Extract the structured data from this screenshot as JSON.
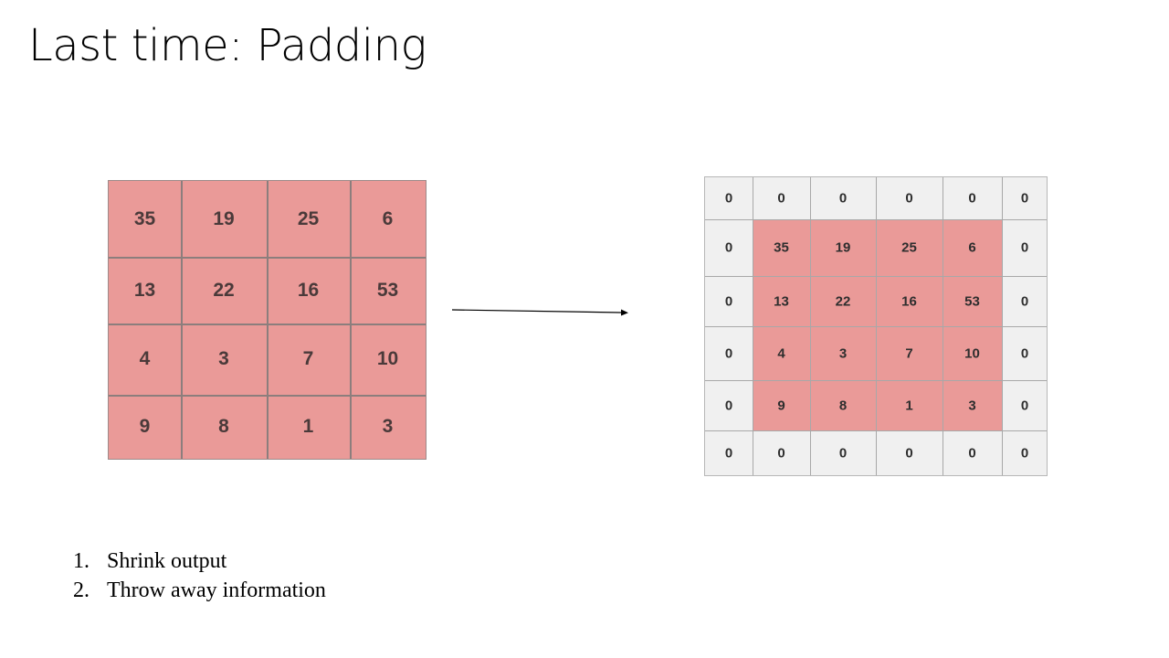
{
  "slide": {
    "title": "Last time: Padding"
  },
  "input_grid": {
    "rows": [
      [
        "35",
        "19",
        "25",
        "6"
      ],
      [
        "13",
        "22",
        "16",
        "53"
      ],
      [
        "4",
        "3",
        "7",
        "10"
      ],
      [
        "9",
        "8",
        "1",
        "3"
      ]
    ],
    "fill_color": "#ea9a98"
  },
  "padded_grid": {
    "rows": [
      [
        "0",
        "0",
        "0",
        "0",
        "0",
        "0"
      ],
      [
        "0",
        "35",
        "19",
        "25",
        "6",
        "0"
      ],
      [
        "0",
        "13",
        "22",
        "16",
        "53",
        "0"
      ],
      [
        "0",
        "4",
        "3",
        "7",
        "10",
        "0"
      ],
      [
        "0",
        "9",
        "8",
        "1",
        "3",
        "0"
      ],
      [
        "0",
        "0",
        "0",
        "0",
        "0",
        "0"
      ]
    ],
    "padding_color": "#f0f0f0",
    "fill_color": "#ea9a98"
  },
  "arrow": {
    "icon": "arrow-right-icon"
  },
  "problems": [
    {
      "number": "1.",
      "text": "Shrink output"
    },
    {
      "number": "2.",
      "text": "Throw away information"
    }
  ]
}
